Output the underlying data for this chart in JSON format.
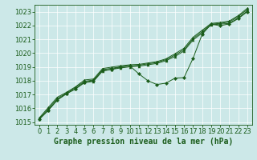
{
  "background_color": "#cce8e8",
  "grid_color": "#ffffff",
  "line_color": "#1a5c1a",
  "xlabel": "Graphe pression niveau de la mer (hPa)",
  "xlabel_fontsize": 7,
  "tick_fontsize": 6,
  "xlim": [
    -0.5,
    23.5
  ],
  "ylim": [
    1014.8,
    1023.5
  ],
  "yticks": [
    1015,
    1016,
    1017,
    1018,
    1019,
    1020,
    1021,
    1022,
    1023
  ],
  "xticks": [
    0,
    1,
    2,
    3,
    4,
    5,
    6,
    7,
    8,
    9,
    10,
    11,
    12,
    13,
    14,
    15,
    16,
    17,
    18,
    19,
    20,
    21,
    22,
    23
  ],
  "line1": [
    1015.2,
    1015.85,
    1016.6,
    1017.05,
    1017.4,
    1017.85,
    1017.95,
    1018.7,
    1018.82,
    1018.92,
    1019.0,
    1019.05,
    1019.15,
    1019.25,
    1019.45,
    1019.75,
    1020.15,
    1020.95,
    1021.45,
    1022.05,
    1022.1,
    1022.15,
    1022.55,
    1023.05
  ],
  "line2": [
    1015.25,
    1015.95,
    1016.7,
    1017.1,
    1017.5,
    1017.95,
    1018.05,
    1018.8,
    1018.9,
    1019.0,
    1019.08,
    1019.12,
    1019.22,
    1019.32,
    1019.52,
    1019.85,
    1020.25,
    1021.05,
    1021.55,
    1022.1,
    1022.15,
    1022.25,
    1022.65,
    1023.15
  ],
  "line3": [
    1015.3,
    1016.05,
    1016.8,
    1017.15,
    1017.55,
    1018.05,
    1018.12,
    1018.88,
    1018.98,
    1019.08,
    1019.15,
    1019.18,
    1019.28,
    1019.38,
    1019.58,
    1019.95,
    1020.35,
    1021.15,
    1021.65,
    1022.15,
    1022.22,
    1022.32,
    1022.72,
    1023.25
  ],
  "line_diamond": [
    1015.2,
    1015.85,
    1016.6,
    1017.05,
    1017.4,
    1017.9,
    1018.0,
    1018.72,
    1018.82,
    1019.0,
    1019.08,
    1018.5,
    1018.0,
    1017.72,
    1017.82,
    1018.18,
    1018.22,
    1019.62,
    1021.35,
    1022.1,
    1021.98,
    1022.12,
    1022.5,
    1023.0
  ]
}
